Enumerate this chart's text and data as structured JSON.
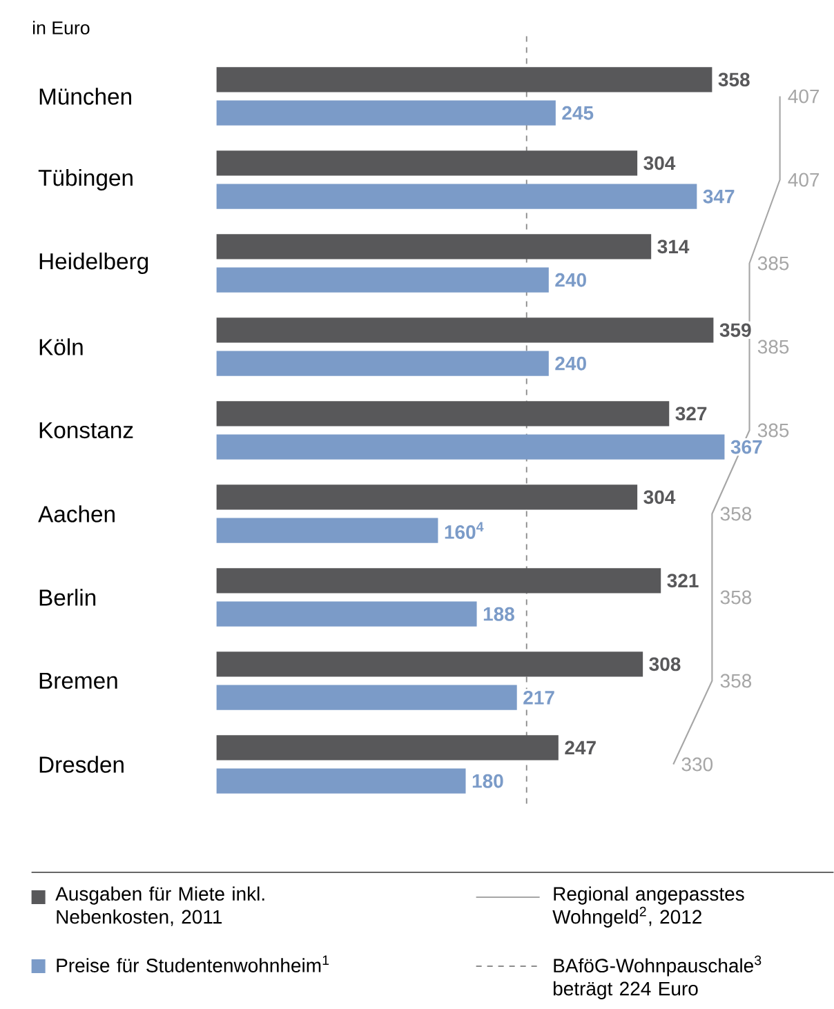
{
  "chart_data": {
    "type": "bar",
    "orientation": "horizontal",
    "categories": [
      "München",
      "Tübingen",
      "Heidelberg",
      "Köln",
      "Konstanz",
      "Aachen",
      "Berlin",
      "Bremen",
      "Dresden"
    ],
    "tick_labels": "y",
    "legend": "bottom",
    "annotations": [
      "in Euro"
    ],
    "series": [
      {
        "name": "Ausgaben für Miete inkl. Nebenkosten, 2011",
        "color": "#58585a",
        "values": [
          358,
          304,
          314,
          359,
          327,
          304,
          321,
          308,
          247
        ],
        "value_labels": [
          "358",
          "304",
          "314",
          "359",
          "327",
          "304",
          "321",
          "308",
          "247"
        ]
      },
      {
        "name": "Preise für Studentenwohnheim$^{1}$",
        "color": "#7b9bc8",
        "values": [
          245,
          347,
          240,
          240,
          367,
          160,
          188,
          217,
          180
        ],
        "value_labels": [
          "245",
          "347",
          "240",
          "240",
          "367",
          "160$^{4}$",
          "188",
          "217",
          "180"
        ]
      },
      {
        "name": "Regional angepasstes Wohngeld$^{2}$, 2012",
        "type": "line",
        "color": "#a6a6a6",
        "values": [
          407,
          407,
          385,
          385,
          385,
          358,
          358,
          358,
          330
        ],
        "value_labels": [
          "407",
          "407",
          "385",
          "385",
          "385",
          "358",
          "358",
          "358",
          "330"
        ]
      }
    ],
    "ref_lines": [
      {
        "axis": "x",
        "value": 224,
        "label": "BAföG-Wohnpauschale$^{3}$ beträgt 224 Euro",
        "color": "#8c8c8c",
        "line_style": "dashed"
      }
    ]
  }
}
